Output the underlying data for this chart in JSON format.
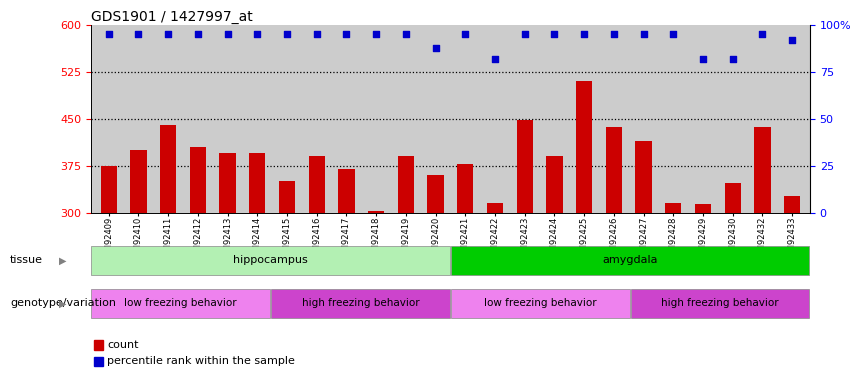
{
  "title": "GDS1901 / 1427997_at",
  "samples": [
    "GSM92409",
    "GSM92410",
    "GSM92411",
    "GSM92412",
    "GSM92413",
    "GSM92414",
    "GSM92415",
    "GSM92416",
    "GSM92417",
    "GSM92418",
    "GSM92419",
    "GSM92420",
    "GSM92421",
    "GSM92422",
    "GSM92423",
    "GSM92424",
    "GSM92425",
    "GSM92426",
    "GSM92427",
    "GSM92428",
    "GSM92429",
    "GSM92430",
    "GSM92432",
    "GSM92433"
  ],
  "counts": [
    375,
    400,
    440,
    405,
    395,
    395,
    350,
    390,
    370,
    303,
    390,
    360,
    378,
    315,
    448,
    390,
    510,
    437,
    415,
    315,
    313,
    347,
    437,
    327
  ],
  "percentiles": [
    95,
    95,
    95,
    95,
    95,
    95,
    95,
    95,
    95,
    95,
    95,
    88,
    95,
    82,
    95,
    95,
    95,
    95,
    95,
    95,
    82,
    82,
    95,
    92
  ],
  "bar_color": "#cc0000",
  "dot_color": "#0000cc",
  "ylim_left": [
    300,
    600
  ],
  "ylim_right": [
    0,
    100
  ],
  "yticks_left": [
    300,
    375,
    450,
    525,
    600
  ],
  "yticks_right": [
    0,
    25,
    50,
    75,
    100
  ],
  "hline_values": [
    375,
    450,
    525
  ],
  "tissue_groups": [
    {
      "label": "hippocampus",
      "start": 0,
      "end": 12,
      "color": "#b3f0b3"
    },
    {
      "label": "amygdala",
      "start": 12,
      "end": 24,
      "color": "#00cc00"
    }
  ],
  "genotype_groups": [
    {
      "label": "low freezing behavior",
      "start": 0,
      "end": 6,
      "color": "#ee82ee"
    },
    {
      "label": "high freezing behavior",
      "start": 6,
      "end": 12,
      "color": "#cc44cc"
    },
    {
      "label": "low freezing behavior",
      "start": 12,
      "end": 18,
      "color": "#ee82ee"
    },
    {
      "label": "high freezing behavior",
      "start": 18,
      "end": 24,
      "color": "#cc44cc"
    }
  ],
  "tissue_label": "tissue",
  "genotype_label": "genotype/variation",
  "legend_count_label": "count",
  "legend_percentile_label": "percentile rank within the sample",
  "bg_color": "#cccccc"
}
